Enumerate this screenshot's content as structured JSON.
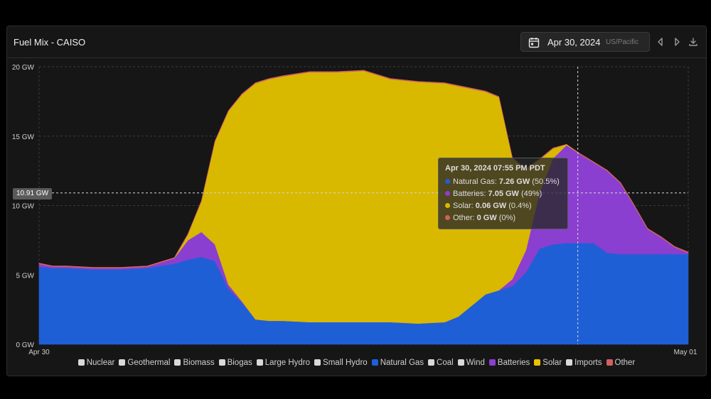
{
  "header": {
    "title": "Fuel Mix - CAISO",
    "date": "Apr 30, 2024",
    "timezone": "US/Pacific"
  },
  "crosshair": {
    "value_label": "10.91 GW",
    "value_gw": 10.91,
    "time": "19:55"
  },
  "tooltip": {
    "title": "Apr 30, 2024 07:55 PM PDT",
    "rows": [
      {
        "label": "Natural Gas:",
        "value": "7.26 GW",
        "pct": "(50.5%)",
        "color": "#1f5fd6"
      },
      {
        "label": "Batteries:",
        "value": "7.05 GW",
        "pct": "(49%)",
        "color": "#8a3fd0"
      },
      {
        "label": "Solar:",
        "value": "0.06 GW",
        "pct": "(0.4%)",
        "color": "#d9b800"
      },
      {
        "label": "Other:",
        "value": "0 GW",
        "pct": "(0%)",
        "color": "#d46060"
      }
    ]
  },
  "legend": [
    {
      "label": "Nuclear",
      "color": "#d9d9d9"
    },
    {
      "label": "Geothermal",
      "color": "#d9d9d9"
    },
    {
      "label": "Biomass",
      "color": "#d9d9d9"
    },
    {
      "label": "Biogas",
      "color": "#d9d9d9"
    },
    {
      "label": "Large Hydro",
      "color": "#d9d9d9"
    },
    {
      "label": "Small Hydro",
      "color": "#d9d9d9"
    },
    {
      "label": "Natural Gas",
      "color": "#1f5fd6"
    },
    {
      "label": "Coal",
      "color": "#d9d9d9"
    },
    {
      "label": "Wind",
      "color": "#d9d9d9"
    },
    {
      "label": "Batteries",
      "color": "#8a3fd0"
    },
    {
      "label": "Solar",
      "color": "#e6c200"
    },
    {
      "label": "Imports",
      "color": "#d9d9d9"
    },
    {
      "label": "Other",
      "color": "#d46060"
    }
  ],
  "chart_data": {
    "type": "area",
    "stacked": true,
    "x_unit": "hour of day (Apr 30, 2024, US/Pacific)",
    "x": [
      0,
      0.5,
      1,
      2,
      3,
      4,
      5,
      5.5,
      6,
      6.5,
      7,
      7.5,
      8,
      8.5,
      9,
      10,
      11,
      12,
      13,
      14,
      15,
      15.5,
      16,
      16.5,
      17,
      17.5,
      18,
      18.5,
      19,
      19.5,
      20,
      20.5,
      21,
      21.5,
      22,
      22.5,
      23,
      23.5,
      24
    ],
    "x_tick_labels": [
      "Apr 30",
      "May 01"
    ],
    "y_ticks": [
      "0 GW",
      "5 GW",
      "10 GW",
      "15 GW",
      "20 GW"
    ],
    "ylim": [
      0,
      20
    ],
    "grid": true,
    "legend_position": "bottom",
    "series": [
      {
        "name": "Natural Gas",
        "color": "#1f5fd6",
        "values": [
          5.6,
          5.5,
          5.5,
          5.4,
          5.4,
          5.5,
          5.8,
          6.1,
          6.3,
          6.0,
          4.0,
          3.0,
          1.8,
          1.7,
          1.7,
          1.6,
          1.6,
          1.6,
          1.6,
          1.5,
          1.6,
          2.0,
          2.8,
          3.6,
          3.9,
          4.2,
          5.2,
          6.9,
          7.2,
          7.3,
          7.3,
          7.3,
          6.6,
          6.5,
          6.5,
          6.5,
          6.5,
          6.5,
          6.5
        ]
      },
      {
        "name": "Batteries",
        "color": "#8a3fd0",
        "values": [
          0.2,
          0.1,
          0.1,
          0.1,
          0.1,
          0.1,
          0.4,
          1.4,
          1.8,
          1.2,
          0.3,
          0.1,
          0,
          0,
          0,
          0,
          0,
          0,
          0,
          0,
          0,
          0,
          0,
          0,
          0,
          0.5,
          1.6,
          4.0,
          6.2,
          7.05,
          6.4,
          5.8,
          5.9,
          5.1,
          3.5,
          1.8,
          1.2,
          0.5,
          0.1
        ]
      },
      {
        "name": "Solar",
        "color": "#d9b800",
        "values": [
          0,
          0,
          0,
          0,
          0,
          0,
          0,
          0.4,
          2.2,
          7.4,
          12.5,
          14.9,
          17.0,
          17.4,
          17.6,
          18.0,
          18.0,
          18.1,
          17.5,
          17.4,
          17.2,
          16.6,
          15.6,
          14.6,
          13.9,
          8.7,
          5.8,
          2.4,
          0.7,
          0.06,
          0,
          0,
          0,
          0,
          0,
          0,
          0,
          0,
          0
        ]
      },
      {
        "name": "Other",
        "color": "#d46060",
        "values": [
          0.05,
          0.05,
          0.05,
          0.05,
          0.05,
          0.05,
          0.05,
          0.05,
          0.05,
          0.05,
          0.05,
          0.05,
          0.05,
          0.05,
          0.05,
          0.05,
          0.05,
          0.05,
          0.05,
          0.05,
          0.05,
          0.05,
          0.05,
          0.05,
          0.05,
          0.05,
          0.05,
          0.05,
          0.05,
          0,
          0.05,
          0.05,
          0.05,
          0.05,
          0.05,
          0.05,
          0.05,
          0.05,
          0.05
        ]
      }
    ]
  }
}
